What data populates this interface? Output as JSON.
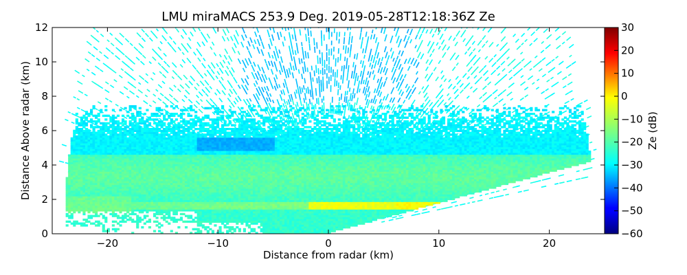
{
  "chart_data": {
    "type": "heatmap",
    "title": "LMU miraMACS 253.9 Deg. 2019-05-28T12:18:36Z  Ze",
    "xlabel": "Distance from radar (km)",
    "ylabel": "Distance Above radar  (km)",
    "xlim": [
      -25,
      25
    ],
    "ylim": [
      0,
      12
    ],
    "xticks": [
      -20,
      -10,
      0,
      10,
      20
    ],
    "xtick_labels": [
      "−20",
      "−10",
      "0",
      "10",
      "20"
    ],
    "yticks": [
      0,
      2,
      4,
      6,
      8,
      10,
      12
    ],
    "ytick_labels": [
      "0",
      "2",
      "4",
      "6",
      "8",
      "10",
      "12"
    ],
    "colorbar": {
      "label": "Ze (dB)",
      "range": [
        -60,
        30
      ],
      "ticks": [
        30,
        20,
        10,
        0,
        -10,
        -20,
        -30,
        -40,
        -50,
        -60
      ],
      "tick_labels": [
        "30",
        "20",
        "10",
        "0",
        "−10",
        "−20",
        "−30",
        "−40",
        "−50",
        "−60"
      ],
      "colormap": "jet"
    },
    "features": {
      "scan_azimuth_deg": 253.9,
      "max_range_km": 24,
      "background_echo_dbz": -28,
      "cloud_layer": {
        "base_km": 1.8,
        "top_km": 7,
        "typical_dbz": -22
      },
      "bright_band": {
        "height_km": 1.6,
        "peak_dbz": -5
      }
    }
  }
}
